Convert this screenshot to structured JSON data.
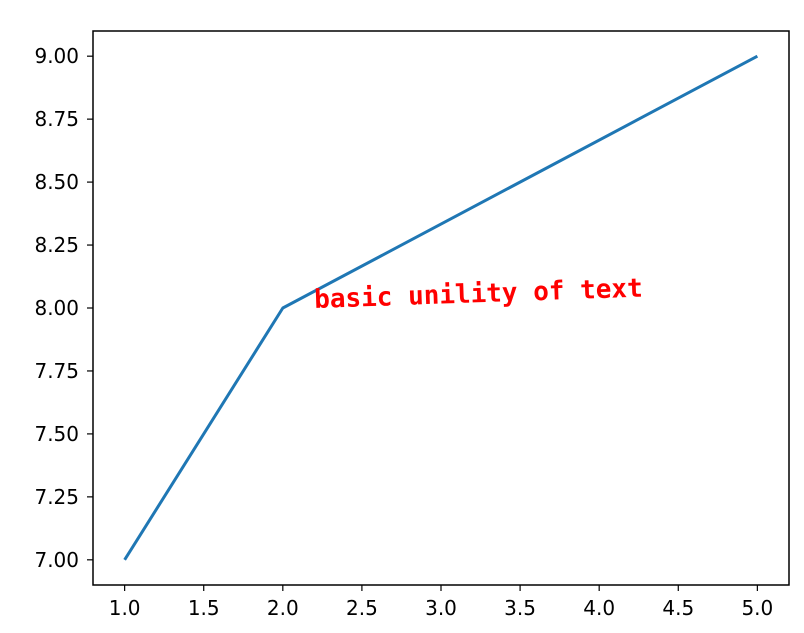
{
  "chart_data": {
    "type": "line",
    "x": [
      1,
      2,
      5
    ],
    "series": [
      {
        "values": [
          7,
          8,
          9
        ],
        "color": "#1f77b4"
      }
    ],
    "xlim": [
      0.8,
      5.2
    ],
    "ylim": [
      6.9,
      9.1
    ],
    "x_ticks": [
      "1.0",
      "1.5",
      "2.0",
      "2.5",
      "3.0",
      "3.5",
      "4.0",
      "4.5",
      "5.0"
    ],
    "y_ticks": [
      "7.00",
      "7.25",
      "7.50",
      "7.75",
      "8.00",
      "8.25",
      "8.50",
      "8.75",
      "9.00"
    ],
    "grid": false,
    "annotation": {
      "text": "basic unility of text",
      "x": 2.2,
      "y": 8.0,
      "color": "#ff0000",
      "rotation_deg": 2
    }
  }
}
